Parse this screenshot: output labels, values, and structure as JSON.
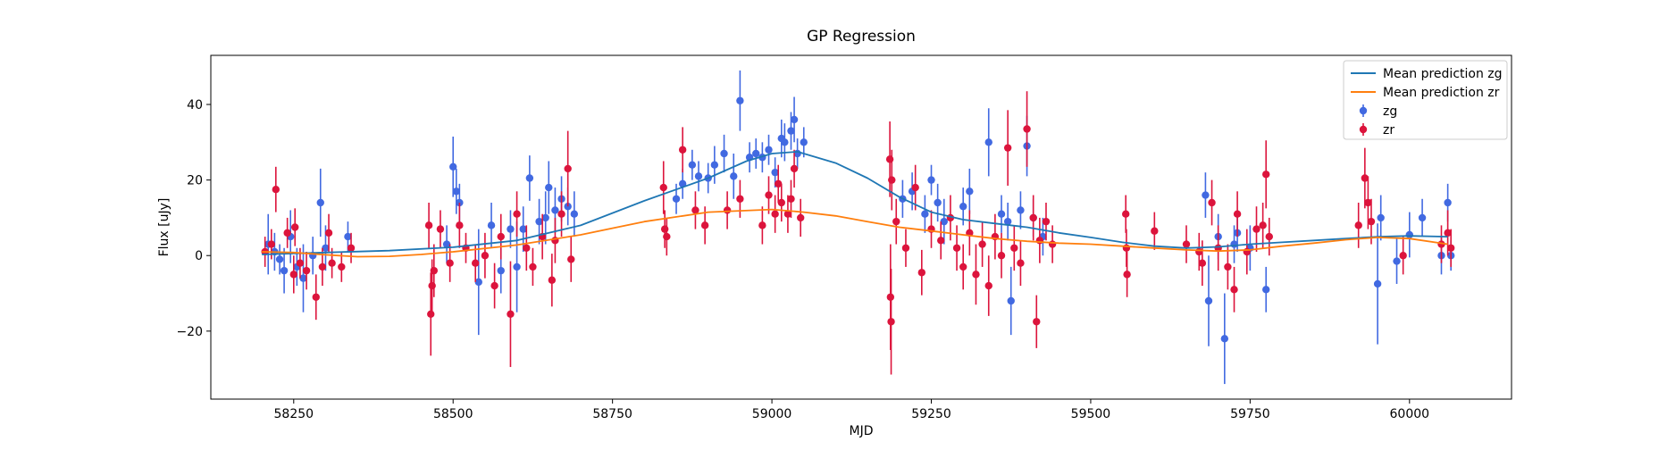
{
  "chart_data": {
    "type": "scatter",
    "title": "GP Regression",
    "xlabel": "MJD",
    "ylabel": "Flux [uJy]",
    "xlim": [
      58120,
      60160
    ],
    "ylim": [
      -38,
      53
    ],
    "xticks": [
      58250,
      58500,
      58750,
      59000,
      59250,
      59500,
      59750,
      60000
    ],
    "yticks": [
      -20,
      0,
      20,
      40
    ],
    "grid": false,
    "legend_position": "top-right",
    "series": [
      {
        "name": "Mean prediction zg",
        "kind": "line",
        "color": "#1f77b4",
        "x": [
          58200,
          58300,
          58400,
          58500,
          58600,
          58700,
          58800,
          58900,
          58960,
          59000,
          59040,
          59100,
          59150,
          59200,
          59250,
          59300,
          59350,
          59400,
          59450,
          59500,
          59550,
          59600,
          59650,
          59700,
          59750,
          59800,
          59850,
          59900,
          59950,
          60000,
          60060
        ],
        "y": [
          0.3,
          0.8,
          1.3,
          2.2,
          4.0,
          8.0,
          14.5,
          20.5,
          25.0,
          27.0,
          27.5,
          24.5,
          20.5,
          15.5,
          11.5,
          9.5,
          8.5,
          7.5,
          6.0,
          4.8,
          3.5,
          2.5,
          2.0,
          2.3,
          3.0,
          3.5,
          4.0,
          4.5,
          5.0,
          5.2,
          5.0
        ]
      },
      {
        "name": "Mean prediction zr",
        "kind": "line",
        "color": "#ff7f0e",
        "x": [
          58200,
          58250,
          58300,
          58350,
          58400,
          58450,
          58500,
          58600,
          58700,
          58800,
          58900,
          59000,
          59050,
          59100,
          59150,
          59200,
          59250,
          59300,
          59350,
          59400,
          59450,
          59500,
          59550,
          59600,
          59650,
          59700,
          59750,
          59800,
          59850,
          59900,
          59950,
          60000,
          60060
        ],
        "y": [
          1.0,
          0.8,
          0.2,
          -0.3,
          -0.2,
          0.3,
          1.0,
          2.8,
          5.5,
          9.0,
          11.5,
          12.2,
          11.5,
          10.5,
          9.0,
          7.5,
          6.5,
          5.5,
          4.5,
          3.8,
          3.3,
          3.0,
          2.5,
          2.0,
          1.5,
          1.2,
          1.5,
          2.5,
          3.3,
          4.2,
          4.8,
          4.5,
          3.0
        ]
      },
      {
        "name": "zg",
        "kind": "errorbar",
        "color": "#4169e1",
        "points": [
          {
            "x": 58210,
            "y": 3,
            "e": 8
          },
          {
            "x": 58220,
            "y": 1,
            "e": 5
          },
          {
            "x": 58228,
            "y": -1,
            "e": 4
          },
          {
            "x": 58235,
            "y": -4,
            "e": 6
          },
          {
            "x": 58245,
            "y": 5,
            "e": 7
          },
          {
            "x": 58255,
            "y": -3,
            "e": 5
          },
          {
            "x": 58265,
            "y": -6,
            "e": 9
          },
          {
            "x": 58280,
            "y": 0,
            "e": 5
          },
          {
            "x": 58292,
            "y": 14,
            "e": 9
          },
          {
            "x": 58300,
            "y": 2,
            "e": 6
          },
          {
            "x": 58335,
            "y": 5,
            "e": 4
          },
          {
            "x": 58490,
            "y": 3,
            "e": 5
          },
          {
            "x": 58500,
            "y": 23.5,
            "e": 8
          },
          {
            "x": 58505,
            "y": 17,
            "e": 6
          },
          {
            "x": 58510,
            "y": 14,
            "e": 5
          },
          {
            "x": 58540,
            "y": -7,
            "e": 14
          },
          {
            "x": 58560,
            "y": 8,
            "e": 6
          },
          {
            "x": 58575,
            "y": -4,
            "e": 6
          },
          {
            "x": 58590,
            "y": 7,
            "e": 5
          },
          {
            "x": 58600,
            "y": -3,
            "e": 12
          },
          {
            "x": 58610,
            "y": 7,
            "e": 6
          },
          {
            "x": 58620,
            "y": 20.5,
            "e": 6
          },
          {
            "x": 58635,
            "y": 9,
            "e": 6
          },
          {
            "x": 58645,
            "y": 10,
            "e": 7
          },
          {
            "x": 58650,
            "y": 18,
            "e": 7
          },
          {
            "x": 58660,
            "y": 12,
            "e": 6
          },
          {
            "x": 58670,
            "y": 15,
            "e": 6
          },
          {
            "x": 58680,
            "y": 13,
            "e": 5
          },
          {
            "x": 58690,
            "y": 11,
            "e": 6
          },
          {
            "x": 58850,
            "y": 15,
            "e": 4
          },
          {
            "x": 58860,
            "y": 19,
            "e": 4
          },
          {
            "x": 58875,
            "y": 24,
            "e": 4
          },
          {
            "x": 58885,
            "y": 21,
            "e": 4
          },
          {
            "x": 58900,
            "y": 20.5,
            "e": 4
          },
          {
            "x": 58910,
            "y": 24,
            "e": 5
          },
          {
            "x": 58925,
            "y": 27,
            "e": 5
          },
          {
            "x": 58940,
            "y": 21,
            "e": 6
          },
          {
            "x": 58950,
            "y": 41,
            "e": 8
          },
          {
            "x": 58965,
            "y": 26,
            "e": 4
          },
          {
            "x": 58975,
            "y": 27,
            "e": 4
          },
          {
            "x": 58985,
            "y": 26,
            "e": 4
          },
          {
            "x": 58995,
            "y": 28,
            "e": 4
          },
          {
            "x": 59005,
            "y": 22,
            "e": 4
          },
          {
            "x": 59015,
            "y": 31,
            "e": 5
          },
          {
            "x": 59020,
            "y": 30,
            "e": 5
          },
          {
            "x": 59030,
            "y": 33,
            "e": 5
          },
          {
            "x": 59035,
            "y": 36,
            "e": 6
          },
          {
            "x": 59040,
            "y": 27,
            "e": 4
          },
          {
            "x": 59050,
            "y": 30,
            "e": 4
          },
          {
            "x": 59205,
            "y": 15,
            "e": 5
          },
          {
            "x": 59220,
            "y": 17,
            "e": 5
          },
          {
            "x": 59240,
            "y": 11,
            "e": 5
          },
          {
            "x": 59250,
            "y": 20,
            "e": 4
          },
          {
            "x": 59260,
            "y": 14,
            "e": 5
          },
          {
            "x": 59270,
            "y": 9,
            "e": 6
          },
          {
            "x": 59300,
            "y": 13,
            "e": 5
          },
          {
            "x": 59310,
            "y": 17,
            "e": 6
          },
          {
            "x": 59340,
            "y": 30,
            "e": 9
          },
          {
            "x": 59360,
            "y": 11,
            "e": 5
          },
          {
            "x": 59370,
            "y": 9,
            "e": 5
          },
          {
            "x": 59375,
            "y": -12,
            "e": 9
          },
          {
            "x": 59390,
            "y": 12,
            "e": 5
          },
          {
            "x": 59400,
            "y": 29,
            "e": 8
          },
          {
            "x": 59410,
            "y": 10,
            "e": 5
          },
          {
            "x": 59425,
            "y": 5,
            "e": 5
          },
          {
            "x": 59680,
            "y": 16,
            "e": 6
          },
          {
            "x": 59685,
            "y": -12,
            "e": 12
          },
          {
            "x": 59700,
            "y": 5,
            "e": 6
          },
          {
            "x": 59710,
            "y": -22,
            "e": 12
          },
          {
            "x": 59725,
            "y": 3,
            "e": 5
          },
          {
            "x": 59730,
            "y": 6,
            "e": 5
          },
          {
            "x": 59750,
            "y": 2,
            "e": 6
          },
          {
            "x": 59775,
            "y": -9,
            "e": 6
          },
          {
            "x": 59950,
            "y": -7.5,
            "e": 16
          },
          {
            "x": 59955,
            "y": 10,
            "e": 6
          },
          {
            "x": 59980,
            "y": -1.5,
            "e": 6
          },
          {
            "x": 60000,
            "y": 5.5,
            "e": 6
          },
          {
            "x": 60020,
            "y": 10,
            "e": 5
          },
          {
            "x": 60050,
            "y": 0,
            "e": 5
          },
          {
            "x": 60060,
            "y": 14,
            "e": 5
          },
          {
            "x": 60065,
            "y": 0,
            "e": 4
          }
        ]
      },
      {
        "name": "zr",
        "kind": "errorbar",
        "color": "#dc143c",
        "points": [
          {
            "x": 58205,
            "y": 1,
            "e": 4
          },
          {
            "x": 58215,
            "y": 3,
            "e": 4
          },
          {
            "x": 58222,
            "y": 17.5,
            "e": 6
          },
          {
            "x": 58240,
            "y": 6,
            "e": 4
          },
          {
            "x": 58250,
            "y": -5,
            "e": 5
          },
          {
            "x": 58252,
            "y": 7.5,
            "e": 5
          },
          {
            "x": 58260,
            "y": -2,
            "e": 4
          },
          {
            "x": 58270,
            "y": -4,
            "e": 5
          },
          {
            "x": 58285,
            "y": -11,
            "e": 6
          },
          {
            "x": 58295,
            "y": -3,
            "e": 5
          },
          {
            "x": 58305,
            "y": 6,
            "e": 5
          },
          {
            "x": 58310,
            "y": -2,
            "e": 4
          },
          {
            "x": 58325,
            "y": -3,
            "e": 4
          },
          {
            "x": 58340,
            "y": 2,
            "e": 4
          },
          {
            "x": 58462,
            "y": 8,
            "e": 6
          },
          {
            "x": 58465,
            "y": -15.5,
            "e": 11
          },
          {
            "x": 58467,
            "y": -8,
            "e": 7
          },
          {
            "x": 58470,
            "y": -4,
            "e": 7
          },
          {
            "x": 58480,
            "y": 7,
            "e": 5
          },
          {
            "x": 58495,
            "y": -2,
            "e": 5
          },
          {
            "x": 58510,
            "y": 8,
            "e": 6
          },
          {
            "x": 58520,
            "y": 2,
            "e": 4
          },
          {
            "x": 58535,
            "y": -2,
            "e": 5
          },
          {
            "x": 58550,
            "y": 0,
            "e": 6
          },
          {
            "x": 58565,
            "y": -8,
            "e": 6
          },
          {
            "x": 58575,
            "y": 5,
            "e": 6
          },
          {
            "x": 58590,
            "y": -15.5,
            "e": 14
          },
          {
            "x": 58600,
            "y": 11,
            "e": 6
          },
          {
            "x": 58615,
            "y": 2,
            "e": 6
          },
          {
            "x": 58625,
            "y": -3,
            "e": 5
          },
          {
            "x": 58640,
            "y": 5,
            "e": 6
          },
          {
            "x": 58655,
            "y": -6.5,
            "e": 7
          },
          {
            "x": 58660,
            "y": 4,
            "e": 6
          },
          {
            "x": 58670,
            "y": 11,
            "e": 6
          },
          {
            "x": 58680,
            "y": 23,
            "e": 10
          },
          {
            "x": 58685,
            "y": -1,
            "e": 6
          },
          {
            "x": 58830,
            "y": 18,
            "e": 7
          },
          {
            "x": 58832,
            "y": 7,
            "e": 5
          },
          {
            "x": 58835,
            "y": 5,
            "e": 5
          },
          {
            "x": 58860,
            "y": 28,
            "e": 6
          },
          {
            "x": 58880,
            "y": 12,
            "e": 5
          },
          {
            "x": 58895,
            "y": 8,
            "e": 5
          },
          {
            "x": 58930,
            "y": 12,
            "e": 5
          },
          {
            "x": 58950,
            "y": 15,
            "e": 5
          },
          {
            "x": 58985,
            "y": 8,
            "e": 5
          },
          {
            "x": 58995,
            "y": 16,
            "e": 5
          },
          {
            "x": 59005,
            "y": 11,
            "e": 5
          },
          {
            "x": 59010,
            "y": 19,
            "e": 5
          },
          {
            "x": 59015,
            "y": 14,
            "e": 5
          },
          {
            "x": 59025,
            "y": 11,
            "e": 5
          },
          {
            "x": 59030,
            "y": 15,
            "e": 5
          },
          {
            "x": 59035,
            "y": 23,
            "e": 5
          },
          {
            "x": 59045,
            "y": 10,
            "e": 5
          },
          {
            "x": 59185,
            "y": 25.5,
            "e": 10
          },
          {
            "x": 59186,
            "y": -11,
            "e": 14
          },
          {
            "x": 59187,
            "y": -17.5,
            "e": 14
          },
          {
            "x": 59188,
            "y": 20,
            "e": 8
          },
          {
            "x": 59195,
            "y": 9,
            "e": 6
          },
          {
            "x": 59210,
            "y": 2,
            "e": 5
          },
          {
            "x": 59225,
            "y": 18,
            "e": 6
          },
          {
            "x": 59235,
            "y": -4.5,
            "e": 6
          },
          {
            "x": 59250,
            "y": 7,
            "e": 5
          },
          {
            "x": 59265,
            "y": 4,
            "e": 5
          },
          {
            "x": 59280,
            "y": 10,
            "e": 6
          },
          {
            "x": 59290,
            "y": 2,
            "e": 6
          },
          {
            "x": 59300,
            "y": -3,
            "e": 6
          },
          {
            "x": 59310,
            "y": 6,
            "e": 6
          },
          {
            "x": 59320,
            "y": -5,
            "e": 8
          },
          {
            "x": 59330,
            "y": 3,
            "e": 6
          },
          {
            "x": 59340,
            "y": -8,
            "e": 8
          },
          {
            "x": 59350,
            "y": 5,
            "e": 6
          },
          {
            "x": 59360,
            "y": 0,
            "e": 6
          },
          {
            "x": 59370,
            "y": 28.5,
            "e": 10
          },
          {
            "x": 59380,
            "y": 2,
            "e": 6
          },
          {
            "x": 59390,
            "y": -2,
            "e": 6
          },
          {
            "x": 59400,
            "y": 33.5,
            "e": 10
          },
          {
            "x": 59410,
            "y": 10,
            "e": 6
          },
          {
            "x": 59415,
            "y": -17.5,
            "e": 7
          },
          {
            "x": 59420,
            "y": 4,
            "e": 6
          },
          {
            "x": 59430,
            "y": 9,
            "e": 5
          },
          {
            "x": 59440,
            "y": 3,
            "e": 5
          },
          {
            "x": 59555,
            "y": 11,
            "e": 5
          },
          {
            "x": 59556,
            "y": 2,
            "e": 5
          },
          {
            "x": 59557,
            "y": -5,
            "e": 6
          },
          {
            "x": 59600,
            "y": 6.5,
            "e": 5
          },
          {
            "x": 59650,
            "y": 3,
            "e": 5
          },
          {
            "x": 59670,
            "y": 1,
            "e": 5
          },
          {
            "x": 59675,
            "y": -2,
            "e": 6
          },
          {
            "x": 59690,
            "y": 14,
            "e": 6
          },
          {
            "x": 59700,
            "y": 2,
            "e": 6
          },
          {
            "x": 59715,
            "y": -3,
            "e": 6
          },
          {
            "x": 59725,
            "y": -9,
            "e": 6
          },
          {
            "x": 59730,
            "y": 11,
            "e": 6
          },
          {
            "x": 59745,
            "y": 1,
            "e": 6
          },
          {
            "x": 59760,
            "y": 7,
            "e": 6
          },
          {
            "x": 59770,
            "y": 8,
            "e": 6
          },
          {
            "x": 59775,
            "y": 21.5,
            "e": 9
          },
          {
            "x": 59780,
            "y": 5,
            "e": 5
          },
          {
            "x": 59920,
            "y": 8,
            "e": 6
          },
          {
            "x": 59930,
            "y": 20.5,
            "e": 8
          },
          {
            "x": 59935,
            "y": 14,
            "e": 7
          },
          {
            "x": 59940,
            "y": 9,
            "e": 6
          },
          {
            "x": 59990,
            "y": 0,
            "e": 5
          },
          {
            "x": 60050,
            "y": 3,
            "e": 5
          },
          {
            "x": 60060,
            "y": 6,
            "e": 6
          },
          {
            "x": 60065,
            "y": 2,
            "e": 5
          }
        ]
      }
    ]
  }
}
